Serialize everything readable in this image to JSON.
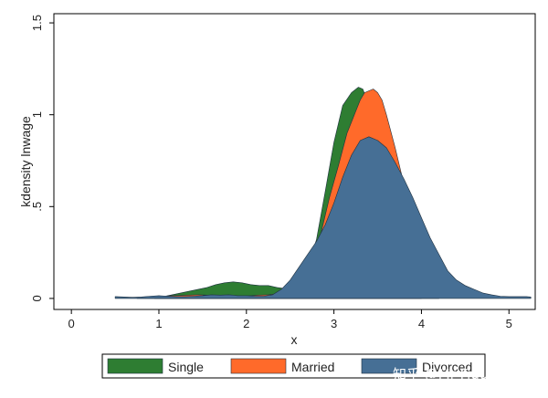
{
  "chart_data": {
    "type": "area",
    "title": "",
    "xlabel": "x",
    "ylabel": "kdensity lnwage",
    "xlim": [
      -0.2,
      5.3
    ],
    "ylim": [
      -0.06,
      1.55
    ],
    "xticks": [
      0,
      1,
      2,
      3,
      4,
      5
    ],
    "xtick_labels": [
      "0",
      "1",
      "2",
      "3",
      "4",
      "5"
    ],
    "yticks": [
      0,
      0.5,
      1,
      1.5
    ],
    "ytick_labels": [
      "0",
      ".5",
      "1",
      "1.5"
    ],
    "grid": false,
    "legend_position": "bottom",
    "series": [
      {
        "name": "Single",
        "color": "#2e7d32",
        "x": [
          0.95,
          1.05,
          1.15,
          1.25,
          1.35,
          1.45,
          1.55,
          1.65,
          1.75,
          1.85,
          1.95,
          2.05,
          2.15,
          2.25,
          2.35,
          2.5,
          2.6,
          2.7,
          2.8,
          2.9,
          3.0,
          3.1,
          3.2,
          3.28,
          3.33,
          3.38,
          3.43,
          3.5,
          3.6,
          3.7,
          3.8,
          3.9,
          4.0
        ],
        "y": [
          0.0,
          0.01,
          0.02,
          0.03,
          0.04,
          0.05,
          0.06,
          0.075,
          0.085,
          0.09,
          0.085,
          0.075,
          0.07,
          0.07,
          0.06,
          0.05,
          0.08,
          0.17,
          0.32,
          0.58,
          0.85,
          1.05,
          1.12,
          1.15,
          1.14,
          1.08,
          0.95,
          0.78,
          0.55,
          0.32,
          0.15,
          0.05,
          0.0
        ]
      },
      {
        "name": "Married",
        "color": "#ff6a2a",
        "x": [
          0.75,
          0.85,
          0.95,
          1.05,
          1.15,
          1.25,
          1.35,
          1.45,
          1.55,
          1.65,
          1.75,
          1.85,
          1.95,
          2.05,
          2.15,
          2.25,
          2.35,
          2.45,
          2.55,
          2.65,
          2.75,
          2.85,
          2.95,
          3.05,
          3.15,
          3.25,
          3.3,
          3.35,
          3.4,
          3.45,
          3.5,
          3.55,
          3.6,
          3.7,
          3.8,
          3.9,
          4.0,
          4.1,
          4.2
        ],
        "y": [
          0.0,
          0.005,
          0.01,
          0.012,
          0.015,
          0.016,
          0.018,
          0.02,
          0.018,
          0.015,
          0.012,
          0.012,
          0.012,
          0.015,
          0.018,
          0.02,
          0.025,
          0.035,
          0.05,
          0.1,
          0.2,
          0.35,
          0.55,
          0.72,
          0.9,
          1.02,
          1.08,
          1.12,
          1.13,
          1.14,
          1.12,
          1.08,
          1.0,
          0.82,
          0.62,
          0.43,
          0.26,
          0.12,
          0.03
        ]
      },
      {
        "name": "Divorced",
        "color": "#466f95",
        "x": [
          0.5,
          0.6,
          0.7,
          0.8,
          0.9,
          1.0,
          1.1,
          1.2,
          1.3,
          1.4,
          1.5,
          1.6,
          1.7,
          1.8,
          1.9,
          2.0,
          2.1,
          2.2,
          2.3,
          2.4,
          2.5,
          2.6,
          2.7,
          2.8,
          2.9,
          3.0,
          3.1,
          3.2,
          3.3,
          3.4,
          3.5,
          3.6,
          3.7,
          3.8,
          3.9,
          4.0,
          4.1,
          4.2,
          4.3,
          4.4,
          4.5,
          4.6,
          4.7,
          4.8,
          4.9,
          5.0,
          5.1,
          5.2,
          5.25
        ],
        "y": [
          0.01,
          0.008,
          0.006,
          0.008,
          0.012,
          0.015,
          0.012,
          0.01,
          0.01,
          0.012,
          0.015,
          0.02,
          0.018,
          0.02,
          0.015,
          0.015,
          0.012,
          0.012,
          0.02,
          0.05,
          0.1,
          0.17,
          0.24,
          0.31,
          0.4,
          0.52,
          0.66,
          0.78,
          0.86,
          0.88,
          0.86,
          0.82,
          0.74,
          0.65,
          0.55,
          0.44,
          0.33,
          0.24,
          0.15,
          0.1,
          0.07,
          0.05,
          0.03,
          0.02,
          0.012,
          0.01,
          0.01,
          0.01,
          0.008
        ]
      }
    ]
  },
  "legend": {
    "items": [
      {
        "label": "Single",
        "color": "#2e7d32"
      },
      {
        "label": "Married",
        "color": "#ff6a2a"
      },
      {
        "label": "Divorced",
        "color": "#466f95"
      }
    ]
  },
  "watermark": "知乎 @Mr Figurant"
}
